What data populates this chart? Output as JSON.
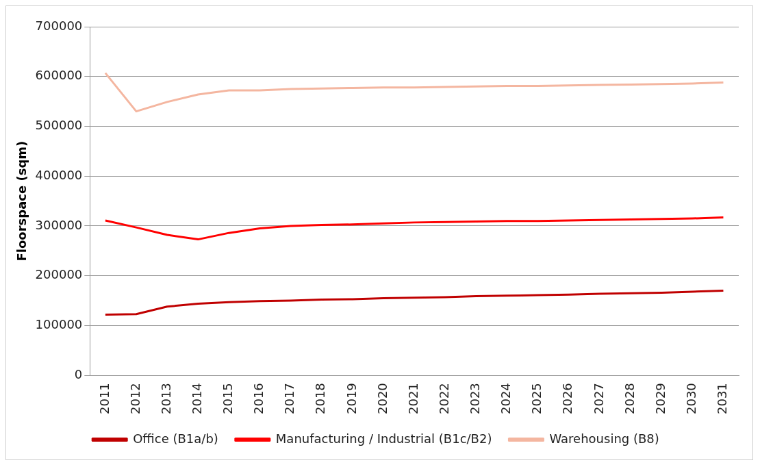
{
  "chart_data": {
    "type": "line",
    "ylabel": "Floorspace (sqm)",
    "categories": [
      "2011",
      "2012",
      "2013",
      "2014",
      "2015",
      "2016",
      "2017",
      "2018",
      "2019",
      "2020",
      "2021",
      "2022",
      "2023",
      "2024",
      "2025",
      "2026",
      "2027",
      "2028",
      "2029",
      "2030",
      "2031"
    ],
    "series": [
      {
        "name": "Office (B1a/b)",
        "color": "#c00000",
        "values": [
          122000,
          123000,
          138000,
          144000,
          147000,
          149000,
          150000,
          152000,
          153000,
          155000,
          156000,
          157000,
          159000,
          160000,
          161000,
          162000,
          164000,
          165000,
          166000,
          168000,
          170000
        ]
      },
      {
        "name": "Manufacturing / Industrial (B1c/B2)",
        "color": "#ff0000",
        "values": [
          311000,
          297000,
          282000,
          273000,
          286000,
          295000,
          300000,
          302000,
          303000,
          305000,
          307000,
          308000,
          309000,
          310000,
          310000,
          311000,
          312000,
          313000,
          314000,
          315000,
          317000
        ]
      },
      {
        "name": "Warehousing (B8)",
        "color": "#f4b6a0",
        "values": [
          607000,
          530000,
          549000,
          564000,
          572000,
          572000,
          575000,
          576000,
          577000,
          578000,
          578000,
          579000,
          580000,
          581000,
          581000,
          582000,
          583000,
          584000,
          585000,
          586000,
          588000
        ]
      }
    ],
    "ylim": [
      0,
      700000
    ],
    "yticks": [
      0,
      100000,
      200000,
      300000,
      400000,
      500000,
      600000,
      700000
    ],
    "grid": "y",
    "legend": "bottom",
    "marker": "none",
    "line_style": "solid"
  }
}
